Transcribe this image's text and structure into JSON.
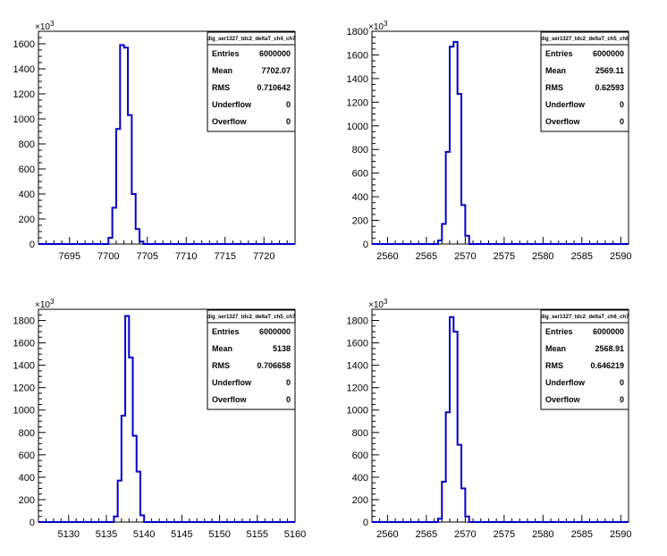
{
  "chart_data": [
    {
      "type": "bar",
      "histogram_name": "dig_ser1327_tdc2_deltaT_ch4_ch7",
      "y_multiplier": "×10",
      "y_multiplier_exp": "3",
      "xlim": [
        7691,
        7724
      ],
      "ylim": [
        0,
        1700
      ],
      "x_ticks": [
        7695,
        7700,
        7705,
        7710,
        7715,
        7720
      ],
      "y_ticks": [
        0,
        200,
        400,
        600,
        800,
        1000,
        1200,
        1400,
        1600
      ],
      "bin_width": 0.5,
      "bins": [
        {
          "x": 7700.0,
          "y": 50
        },
        {
          "x": 7700.5,
          "y": 290
        },
        {
          "x": 7701.0,
          "y": 920
        },
        {
          "x": 7701.5,
          "y": 1590
        },
        {
          "x": 7702.0,
          "y": 1570
        },
        {
          "x": 7702.5,
          "y": 1030
        },
        {
          "x": 7703.0,
          "y": 400
        },
        {
          "x": 7703.5,
          "y": 120
        },
        {
          "x": 7704.0,
          "y": 20
        }
      ],
      "stats": {
        "entries": "6000000",
        "mean": "7702.07",
        "rms": "0.710642",
        "underflow": "0",
        "overflow": "0"
      }
    },
    {
      "type": "bar",
      "histogram_name": "dig_ser1327_tdc2_deltaT_ch5_ch6",
      "y_multiplier": "×10",
      "y_multiplier_exp": "3",
      "xlim": [
        2558,
        2591
      ],
      "ylim": [
        0,
        1800
      ],
      "x_ticks": [
        2560,
        2565,
        2570,
        2575,
        2580,
        2585,
        2590
      ],
      "y_ticks": [
        0,
        200,
        400,
        600,
        800,
        1000,
        1200,
        1400,
        1600,
        1800
      ],
      "bin_width": 0.5,
      "bins": [
        {
          "x": 2566.5,
          "y": 30
        },
        {
          "x": 2567.0,
          "y": 170
        },
        {
          "x": 2567.5,
          "y": 780
        },
        {
          "x": 2568.0,
          "y": 1670
        },
        {
          "x": 2568.5,
          "y": 1710
        },
        {
          "x": 2569.0,
          "y": 1270
        },
        {
          "x": 2569.5,
          "y": 330
        },
        {
          "x": 2570.0,
          "y": 70
        }
      ],
      "stats": {
        "entries": "6000000",
        "mean": "2569.11",
        "rms": "0.62593",
        "underflow": "0",
        "overflow": "0"
      }
    },
    {
      "type": "bar",
      "histogram_name": "dig_ser1327_tdc2_deltaT_ch5_ch7",
      "y_multiplier": "×10",
      "y_multiplier_exp": "3",
      "xlim": [
        5126,
        5160
      ],
      "ylim": [
        0,
        1900
      ],
      "x_ticks": [
        5130,
        5135,
        5140,
        5145,
        5150,
        5155,
        5160
      ],
      "y_ticks": [
        0,
        200,
        400,
        600,
        800,
        1000,
        1200,
        1400,
        1600,
        1800
      ],
      "bin_width": 0.5,
      "bins": [
        {
          "x": 5136.0,
          "y": 50
        },
        {
          "x": 5136.5,
          "y": 370
        },
        {
          "x": 5137.0,
          "y": 950
        },
        {
          "x": 5137.5,
          "y": 1840
        },
        {
          "x": 5138.0,
          "y": 1470
        },
        {
          "x": 5138.5,
          "y": 770
        },
        {
          "x": 5139.0,
          "y": 450
        },
        {
          "x": 5139.5,
          "y": 60
        }
      ],
      "stats": {
        "entries": "6000000",
        "mean": "5138",
        "rms": "0.706658",
        "underflow": "0",
        "overflow": "0"
      }
    },
    {
      "type": "bar",
      "histogram_name": "dig_ser1327_tdc2_deltaT_ch6_ch7",
      "y_multiplier": "×10",
      "y_multiplier_exp": "3",
      "xlim": [
        2558,
        2591
      ],
      "ylim": [
        0,
        1900
      ],
      "x_ticks": [
        2560,
        2565,
        2570,
        2575,
        2580,
        2585,
        2590
      ],
      "y_ticks": [
        0,
        200,
        400,
        600,
        800,
        1000,
        1200,
        1400,
        1600,
        1800
      ],
      "bin_width": 0.5,
      "bins": [
        {
          "x": 2566.5,
          "y": 30
        },
        {
          "x": 2567.0,
          "y": 360
        },
        {
          "x": 2567.5,
          "y": 980
        },
        {
          "x": 2568.0,
          "y": 1830
        },
        {
          "x": 2568.5,
          "y": 1700
        },
        {
          "x": 2569.0,
          "y": 690
        },
        {
          "x": 2569.5,
          "y": 300
        },
        {
          "x": 2570.0,
          "y": 50
        }
      ],
      "stats": {
        "entries": "6000000",
        "mean": "2568.91",
        "rms": "0.646219",
        "underflow": "0",
        "overflow": "0"
      }
    }
  ],
  "stat_labels": {
    "entries": "Entries",
    "mean": "Mean",
    "rms": "RMS",
    "underflow": "Underflow",
    "overflow": "Overflow"
  },
  "style": {
    "line_color": "#0000cc",
    "axis_color": "#000000",
    "background": "#ffffff"
  }
}
